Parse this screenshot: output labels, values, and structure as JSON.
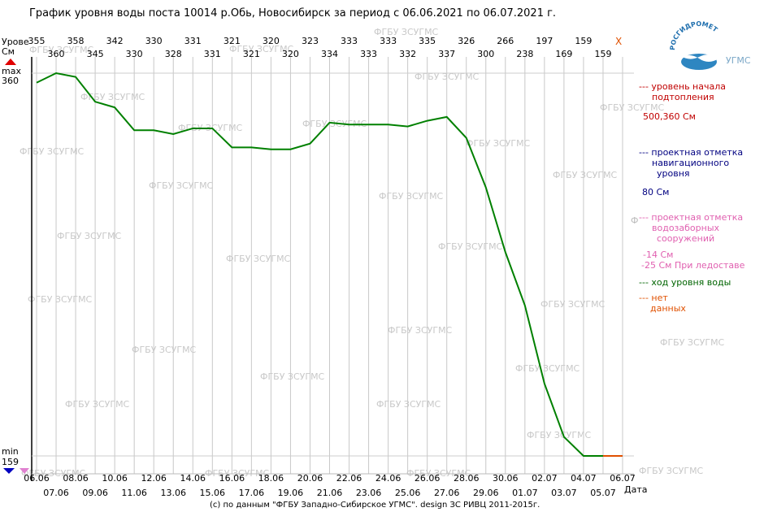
{
  "title": "График уровня воды поста 10014 р.Обь, Новосибирск за период с 06.06.2021 по 06.07.2021 г.",
  "footer": "(c) по данным \"ФГБУ Западно-Сибирское УГМС\". design ЗС РИВЦ 2011-2015г.",
  "yaxis": {
    "label_line1": "Урове",
    "label_line2": "См",
    "max_label": "max",
    "max_value": "360",
    "min_label": "min",
    "min_value": "159"
  },
  "x_unit_label": "Дата",
  "close_mark": "X",
  "watermark": "ФГБУ ЗСУГМС",
  "logo": {
    "arc_text": "РОСГИДРОМЕТ",
    "side_text": "УГМС"
  },
  "legend": {
    "flood_line": "--- уровень начала",
    "flood_line2": "подтопления",
    "flood_value": "500,360 См",
    "nav_line1": "--- проектная отметка",
    "nav_line2": "навигационного",
    "nav_line3": "уровня",
    "nav_value": "80 См",
    "intake_marker": "Ф",
    "intake_line1": "--- проектная отметка",
    "intake_line2": "водозаборных",
    "intake_line3": "сооружений",
    "intake_value1": "-14 См",
    "intake_value2": "-25 См При ледоставе",
    "course": "--- ход уровня воды",
    "nodata_line1": "--- нет",
    "nodata_line2": "данных"
  },
  "colors": {
    "level_line": "#008000",
    "no_data": "#e05000",
    "grid": "#c8c8c8",
    "max_marker": "#e00000",
    "min_marker": "#0000c0",
    "legend_red": "#c00000",
    "legend_blue": "#000080",
    "legend_pink": "#e060b0",
    "legend_green": "#006400"
  },
  "chart_data": {
    "type": "line",
    "title": "График уровня воды поста 10014 р.Обь, Новосибирск за период с 06.06.2021 по 06.07.2021 г.",
    "xlabel": "Дата",
    "ylabel": "Урове См",
    "ylim": [
      159,
      360
    ],
    "grid": true,
    "legend_position": "right",
    "categories": [
      "06.06",
      "07.06",
      "08.06",
      "09.06",
      "10.06",
      "11.06",
      "12.06",
      "13.06",
      "14.06",
      "15.06",
      "16.06",
      "17.06",
      "18.06",
      "19.06",
      "20.06",
      "21.06",
      "22.06",
      "23.06",
      "24.06",
      "25.06",
      "26.06",
      "27.06",
      "28.06",
      "29.06",
      "30.06",
      "01.07",
      "02.07",
      "03.07",
      "04.07",
      "05.07",
      "06.07"
    ],
    "series": [
      {
        "name": "ход уровня воды",
        "values": [
          355,
          360,
          358,
          345,
          342,
          330,
          330,
          328,
          331,
          331,
          321,
          321,
          320,
          320,
          323,
          334,
          333,
          333,
          333,
          332,
          335,
          337,
          326,
          300,
          266,
          238,
          197,
          169,
          159,
          159,
          null
        ]
      }
    ],
    "no_data_from_index": 29
  }
}
